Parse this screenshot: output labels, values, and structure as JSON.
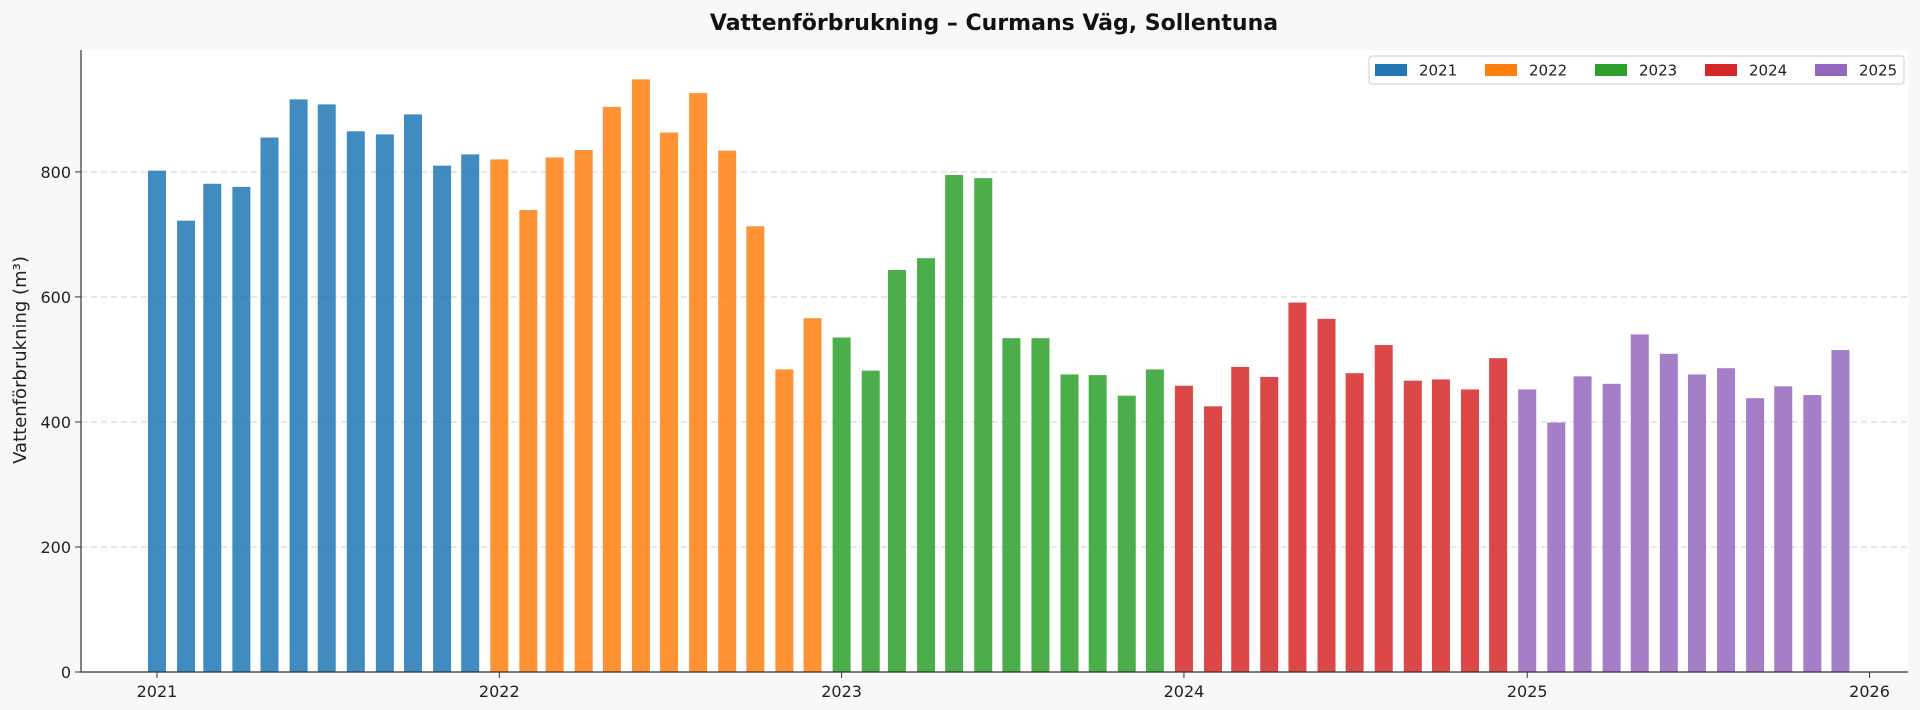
{
  "chart_data": {
    "type": "bar",
    "title": "Vattenförbrukning – Curmans Väg, Sollentuna",
    "xlabel": "",
    "ylabel": "Vattenförbrukning (m³)",
    "xlim": [
      "2020-10-12",
      "2026-02-11"
    ],
    "ylim": [
      0,
      995
    ],
    "yticks": [
      0,
      200,
      400,
      600,
      800
    ],
    "xticks": [
      {
        "date": "2021-01-01",
        "label": "2021"
      },
      {
        "date": "2022-01-01",
        "label": "2022"
      },
      {
        "date": "2023-01-01",
        "label": "2023"
      },
      {
        "date": "2024-01-01",
        "label": "2024"
      },
      {
        "date": "2025-01-01",
        "label": "2025"
      },
      {
        "date": "2026-01-01",
        "label": "2026"
      }
    ],
    "grid": {
      "y": true,
      "x": false
    },
    "legend_position": "top-right",
    "series": [
      {
        "name": "2021",
        "color": "#1f77b4",
        "x": [
          "2021-01",
          "2021-02",
          "2021-03",
          "2021-04",
          "2021-05",
          "2021-06",
          "2021-07",
          "2021-08",
          "2021-09",
          "2021-10",
          "2021-11",
          "2021-12"
        ],
        "values": [
          802,
          722,
          781,
          776,
          855,
          916,
          908,
          865,
          860,
          892,
          810,
          828
        ]
      },
      {
        "name": "2022",
        "color": "#ff7f0e",
        "x": [
          "2022-01",
          "2022-02",
          "2022-03",
          "2022-04",
          "2022-05",
          "2022-06",
          "2022-07",
          "2022-08",
          "2022-09",
          "2022-10",
          "2022-11",
          "2022-12"
        ],
        "values": [
          820,
          739,
          823,
          835,
          904,
          948,
          863,
          926,
          834,
          713,
          484,
          566
        ]
      },
      {
        "name": "2023",
        "color": "#2ca02c",
        "x": [
          "2023-01",
          "2023-02",
          "2023-03",
          "2023-04",
          "2023-05",
          "2023-06",
          "2023-07",
          "2023-08",
          "2023-09",
          "2023-10",
          "2023-11",
          "2023-12"
        ],
        "values": [
          535,
          482,
          643,
          662,
          795,
          790,
          534,
          534,
          476,
          475,
          442,
          484
        ]
      },
      {
        "name": "2024",
        "color": "#d62728",
        "x": [
          "2024-01",
          "2024-02",
          "2024-03",
          "2024-04",
          "2024-05",
          "2024-06",
          "2024-07",
          "2024-08",
          "2024-09",
          "2024-10",
          "2024-11",
          "2024-12"
        ],
        "values": [
          458,
          425,
          488,
          472,
          591,
          565,
          478,
          523,
          466,
          468,
          452,
          502
        ]
      },
      {
        "name": "2025",
        "color": "#9467bd",
        "x": [
          "2025-01",
          "2025-02",
          "2025-03",
          "2025-04",
          "2025-05",
          "2025-06",
          "2025-07",
          "2025-08",
          "2025-09",
          "2025-10",
          "2025-11",
          "2025-12"
        ],
        "values": [
          452,
          399,
          473,
          461,
          540,
          509,
          476,
          486,
          438,
          457,
          443,
          515
        ]
      }
    ]
  }
}
